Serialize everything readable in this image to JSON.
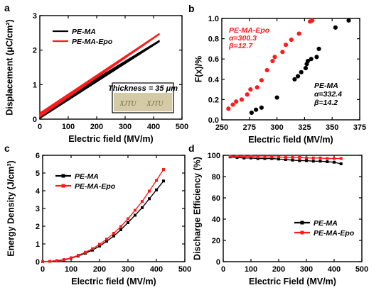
{
  "colors": {
    "black": "#000000",
    "red": "#ff1a1a",
    "inset_bg": "#d4caa6"
  },
  "chart_data": [
    {
      "id": "a",
      "type": "line",
      "panel_label": "a",
      "xlabel": "Electric field (MV/m)",
      "ylabel": "Displacement (μC/cm²)",
      "xlim": [
        0,
        500
      ],
      "ylim": [
        0,
        3
      ],
      "xticks": [
        0,
        100,
        200,
        300,
        400,
        500
      ],
      "yticks": [
        0,
        1,
        2,
        3
      ],
      "legend_position": "top-left",
      "series": [
        {
          "name": "PE-MA",
          "color": "#000000",
          "x": [
            0,
            420
          ],
          "y": [
            0.1,
            2.28
          ],
          "band": 0.08
        },
        {
          "name": "PE-MA-Epo",
          "color": "#ff1a1a",
          "x": [
            0,
            420
          ],
          "y": [
            0.12,
            2.48
          ],
          "band": 0.06
        }
      ],
      "inset": {
        "label": "Thickness = 35 μm",
        "scribbles": [
          "XJTU",
          "XJTU"
        ]
      }
    },
    {
      "id": "b",
      "type": "scatter",
      "panel_label": "b",
      "xlabel": "Electric field (MV/m)",
      "ylabel": "F(x)/%",
      "xlim": [
        250,
        375
      ],
      "ylim": [
        0.0,
        1.0
      ],
      "xticks": [
        250,
        275,
        300,
        325,
        350,
        375
      ],
      "yticks": [
        "0.0",
        "0.2",
        "0.4",
        "0.6",
        "0.8",
        "1.0"
      ],
      "annotations": [
        {
          "color": "#ff1a1a",
          "lines": [
            "PE-MA-Epo",
            "α=300.3",
            "β=12.7"
          ]
        },
        {
          "color": "#000000",
          "lines": [
            "PE-MA",
            "α=332.4",
            "β=14.2"
          ]
        }
      ],
      "series": [
        {
          "name": "PE-MA-Epo",
          "color": "#ff1a1a",
          "x": [
            256,
            260,
            263,
            268,
            273,
            276,
            282,
            286,
            291,
            296,
            298,
            305,
            308,
            313,
            320,
            330,
            332
          ],
          "y": [
            0.11,
            0.15,
            0.18,
            0.2,
            0.25,
            0.3,
            0.32,
            0.39,
            0.49,
            0.58,
            0.62,
            0.67,
            0.74,
            0.79,
            0.85,
            0.97,
            0.98
          ]
        },
        {
          "name": "PE-MA",
          "color": "#000000",
          "x": [
            277,
            281,
            286,
            300,
            316,
            319,
            322,
            326,
            327,
            328,
            331,
            336,
            338,
            353,
            365
          ],
          "y": [
            0.07,
            0.1,
            0.12,
            0.22,
            0.4,
            0.43,
            0.47,
            0.51,
            0.55,
            0.58,
            0.6,
            0.62,
            0.7,
            0.91,
            0.98
          ]
        }
      ]
    },
    {
      "id": "c",
      "type": "line",
      "panel_label": "c",
      "xlabel": "Electric field (MV/m)",
      "ylabel": "Energy Density (J/cm³)",
      "xlim": [
        0,
        500
      ],
      "ylim": [
        0,
        6
      ],
      "xticks": [
        0,
        100,
        200,
        300,
        400,
        500
      ],
      "yticks": [
        0,
        1,
        2,
        3,
        4,
        5,
        6
      ],
      "legend_position": "top-left",
      "series": [
        {
          "name": "PE-MA",
          "color": "#000000",
          "x": [
            0,
            25,
            50,
            75,
            100,
            125,
            150,
            175,
            200,
            225,
            250,
            275,
            300,
            325,
            350,
            375,
            400,
            425
          ],
          "y": [
            0,
            0.02,
            0.05,
            0.1,
            0.2,
            0.32,
            0.48,
            0.65,
            0.88,
            1.15,
            1.45,
            1.8,
            2.2,
            2.62,
            3.05,
            3.55,
            4.05,
            4.55
          ]
        },
        {
          "name": "PE-MA-Epo",
          "color": "#ff1a1a",
          "x": [
            0,
            25,
            50,
            75,
            100,
            125,
            150,
            175,
            200,
            225,
            250,
            275,
            300,
            325,
            350,
            375,
            400,
            425
          ],
          "y": [
            0,
            0.02,
            0.06,
            0.12,
            0.22,
            0.36,
            0.53,
            0.73,
            0.98,
            1.27,
            1.6,
            1.98,
            2.42,
            2.9,
            3.4,
            3.98,
            4.58,
            5.2
          ]
        }
      ]
    },
    {
      "id": "d",
      "type": "line",
      "panel_label": "d",
      "xlabel": "Electric Field (MV/m)",
      "ylabel": "Discharge Efficiency (%)",
      "xlim": [
        0,
        500
      ],
      "ylim": [
        0,
        100
      ],
      "xticks": [
        0,
        100,
        200,
        300,
        400,
        500
      ],
      "yticks": [
        0,
        20,
        40,
        60,
        80,
        100
      ],
      "legend_position": "bottom-right",
      "series": [
        {
          "name": "PE-MA",
          "color": "#000000",
          "x": [
            25,
            50,
            75,
            100,
            125,
            150,
            175,
            200,
            225,
            250,
            275,
            300,
            325,
            350,
            375,
            400,
            425
          ],
          "y": [
            98.5,
            98,
            97.5,
            97.5,
            97,
            97,
            97,
            96.5,
            96,
            95.5,
            95,
            95,
            94.5,
            94.5,
            94,
            93.5,
            92
          ]
        },
        {
          "name": "PE-MA-Epo",
          "color": "#ff1a1a",
          "x": [
            25,
            50,
            75,
            100,
            125,
            150,
            175,
            200,
            225,
            250,
            275,
            300,
            325,
            350,
            375,
            400,
            425
          ],
          "y": [
            99,
            99,
            99,
            99,
            98.5,
            98.5,
            98.5,
            98.5,
            98,
            98,
            98,
            97.5,
            97.5,
            97.5,
            97,
            97,
            97
          ]
        }
      ]
    }
  ]
}
